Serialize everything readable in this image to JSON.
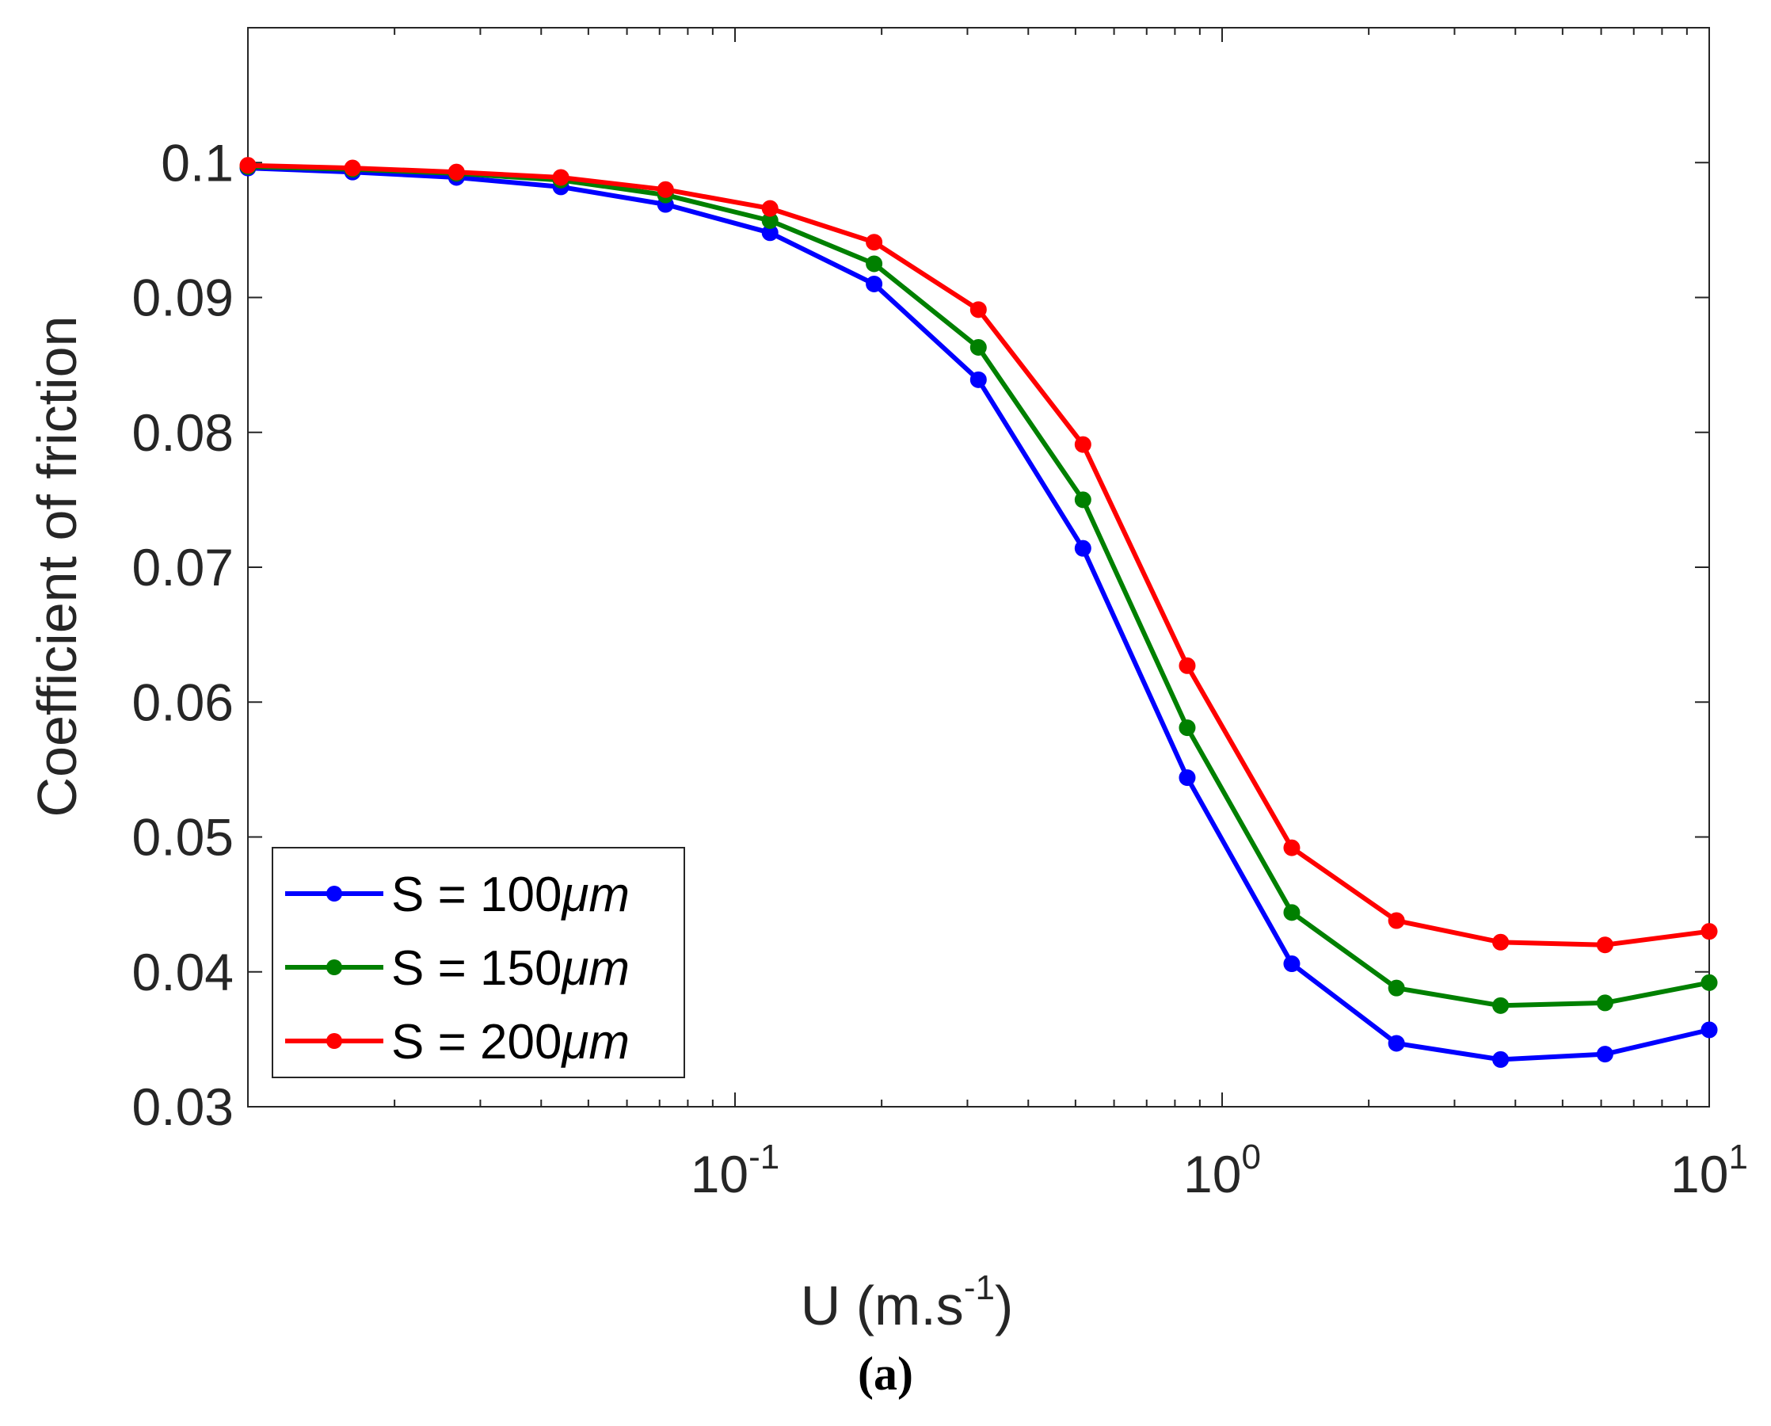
{
  "chart_data": {
    "type": "line",
    "xscale": "log",
    "xlim": [
      0.01,
      10
    ],
    "ylim": [
      0.03,
      0.11
    ],
    "xlabel_main": "U (m.s",
    "xlabel_sup": "-1",
    "xlabel_end": ")",
    "ylabel": "Coefficient of friction",
    "caption": "(a)",
    "x_ticks": [
      {
        "value": 0.1,
        "base": "10",
        "exp": "-1"
      },
      {
        "value": 1,
        "base": "10",
        "exp": "0"
      },
      {
        "value": 10,
        "base": "10",
        "exp": "1"
      }
    ],
    "y_ticks": [
      {
        "value": 0.03,
        "label": "0.03"
      },
      {
        "value": 0.04,
        "label": "0.04"
      },
      {
        "value": 0.05,
        "label": "0.05"
      },
      {
        "value": 0.06,
        "label": "0.06"
      },
      {
        "value": 0.07,
        "label": "0.07"
      },
      {
        "value": 0.08,
        "label": "0.08"
      },
      {
        "value": 0.09,
        "label": "0.09"
      },
      {
        "value": 0.1,
        "label": "0.1"
      }
    ],
    "x": [
      0.01,
      0.0164,
      0.0268,
      0.0439,
      0.072,
      0.118,
      0.193,
      0.316,
      0.518,
      0.848,
      1.39,
      2.28,
      3.73,
      6.11,
      10
    ],
    "series": [
      {
        "name": "S = 100",
        "unit": "μm",
        "color": "#0000ff",
        "values": [
          0.0996,
          0.0993,
          0.0989,
          0.0982,
          0.0969,
          0.0948,
          0.091,
          0.0839,
          0.0714,
          0.0544,
          0.0406,
          0.0347,
          0.0335,
          0.0339,
          0.0357
        ]
      },
      {
        "name": "S = 150",
        "unit": "μm",
        "color": "#008000",
        "values": [
          0.0997,
          0.0995,
          0.0992,
          0.0987,
          0.0976,
          0.0957,
          0.0925,
          0.0863,
          0.075,
          0.0581,
          0.0444,
          0.0388,
          0.0375,
          0.0377,
          0.0392
        ]
      },
      {
        "name": "S = 200",
        "unit": "μm",
        "color": "#ff0000",
        "values": [
          0.0998,
          0.0996,
          0.0993,
          0.0989,
          0.098,
          0.0966,
          0.0941,
          0.0891,
          0.0791,
          0.0627,
          0.0492,
          0.0438,
          0.0422,
          0.042,
          0.043
        ]
      }
    ],
    "legend_position": "bottom-left"
  }
}
